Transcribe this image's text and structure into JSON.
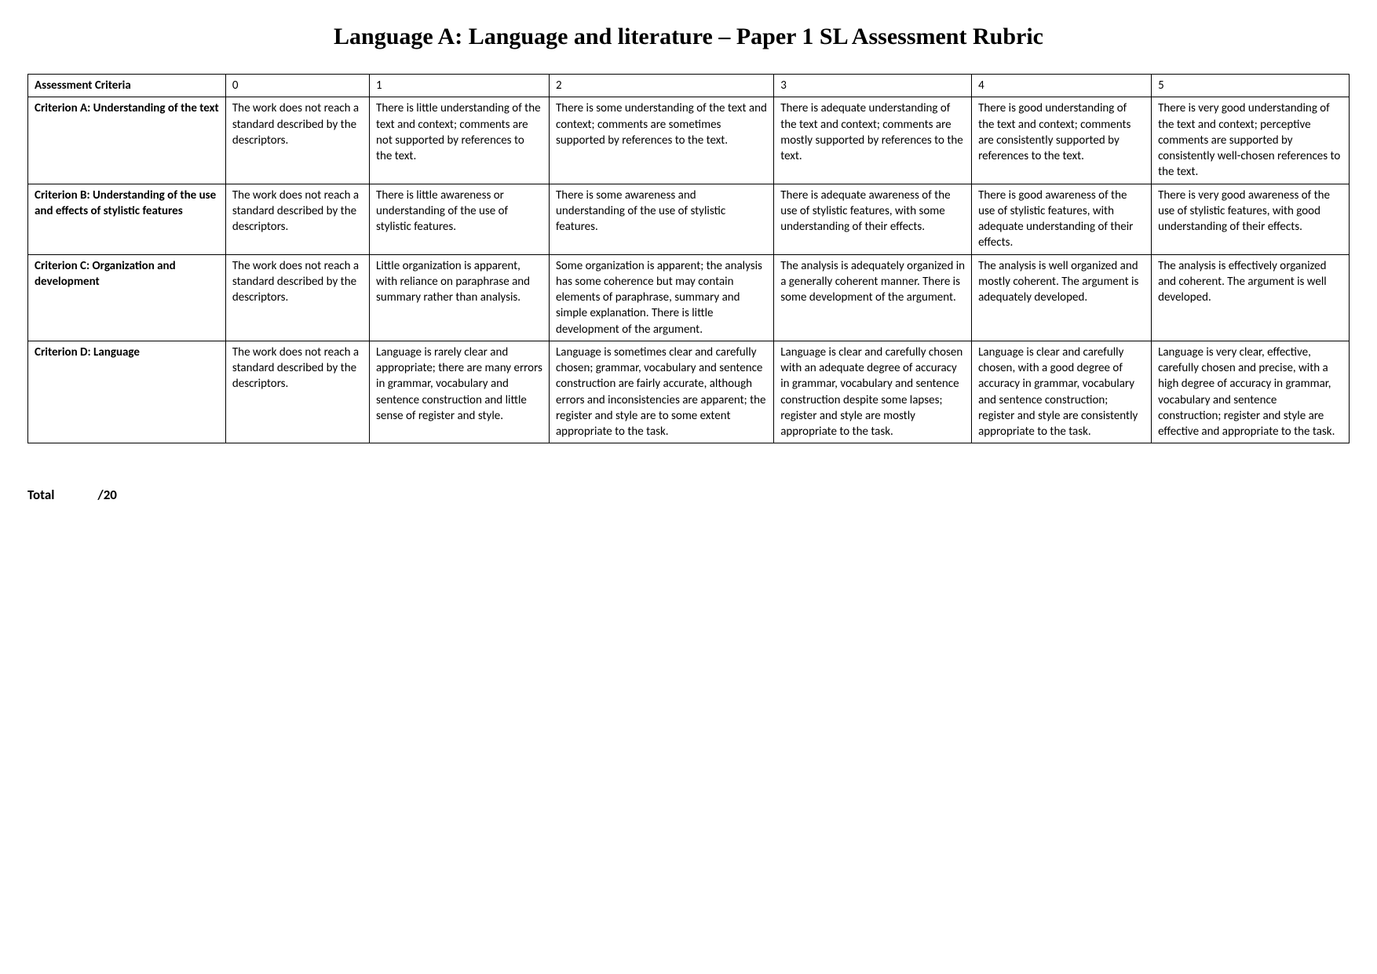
{
  "title": "Language A: Language and literature – Paper 1 SL Assessment Rubric",
  "headers": {
    "criteria": "Assessment Criteria",
    "l0": "0",
    "l1": "1",
    "l2": "2",
    "l3": "3",
    "l4": "4",
    "l5": "5"
  },
  "zero_text": "The work does not reach a standard described by the descriptors.",
  "rows": [
    {
      "name": "Criterion A: Understanding of the text",
      "c1": "There is little understanding of the text and context; comments are not supported by references to the text.",
      "c2": "There is some understanding of the text and context; comments are sometimes supported by references to the text.",
      "c3": "There is adequate understanding of the text and context; comments are mostly supported by references to the text.",
      "c4": "There is good understanding of the text and context; comments are consistently supported by references to the text.",
      "c5": "There is very good understanding of the text and context; perceptive comments are supported by consistently well-chosen references to the text."
    },
    {
      "name": "Criterion B: Understanding of the use and effects of stylistic features",
      "c1": "There is little awareness or understanding of the use of stylistic features.",
      "c2": "There is some awareness and understanding of the use of stylistic features.",
      "c3": "There is adequate awareness of the use of stylistic features, with some understanding of their effects.",
      "c4": "There is good awareness of the use of stylistic features, with adequate understanding of their effects.",
      "c5": "There is very good awareness of the use of stylistic features, with good understanding of their effects."
    },
    {
      "name": "Criterion C: Organization and development",
      "c1": "Little organization is apparent, with reliance on paraphrase and summary rather than analysis.",
      "c2": "Some organization is apparent; the analysis has some coherence but may contain elements of paraphrase, summary and simple explanation. There is little development of the argument.",
      "c3": "The analysis is adequately organized in a generally coherent manner. There is some development of the argument.",
      "c4": "The analysis is well organized and mostly coherent. The argument is adequately developed.",
      "c5": "The analysis is effectively organized and coherent. The argument is well developed."
    },
    {
      "name": "Criterion D: Language",
      "c1": "Language is rarely clear and appropriate; there are many errors in grammar, vocabulary and sentence construction and little sense of register and style.",
      "c2": "Language is sometimes clear and carefully chosen; grammar, vocabulary and sentence construction are fairly accurate, although errors and inconsistencies are apparent; the register and style are to some extent appropriate to the task.",
      "c3": "Language is clear and carefully chosen with an adequate degree of accuracy in grammar, vocabulary and sentence construction despite some lapses; register and style are mostly appropriate to the task.",
      "c4": "Language is clear and carefully chosen, with a good degree of accuracy in grammar, vocabulary and sentence construction; register and style are consistently appropriate to the task.",
      "c5": "Language is very clear, effective, carefully chosen and precise, with a high degree of accuracy in grammar, vocabulary and sentence construction; register and style are effective and appropriate to the task."
    }
  ],
  "total": {
    "label": "Total",
    "value": "/20"
  }
}
